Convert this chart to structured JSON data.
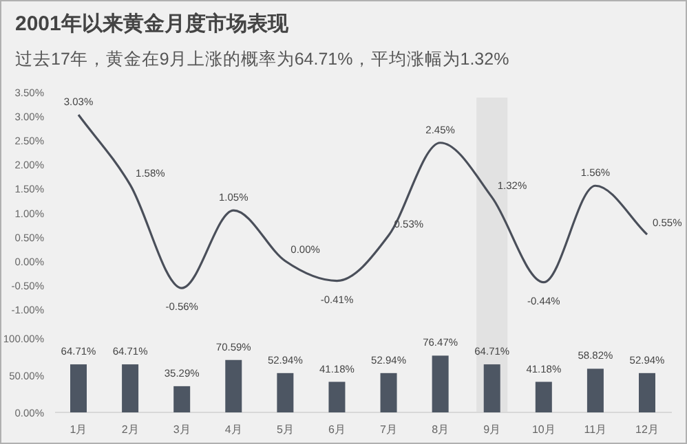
{
  "chart_data": [
    {
      "type": "line",
      "title": "2001年以来黄金月度市场表现",
      "subtitle": "过去17年，黄金在9月上涨的概率为64.71%，平均涨幅为1.32%",
      "categories": [
        null,
        null,
        null,
        null,
        null,
        null,
        null,
        null,
        null,
        null,
        null,
        null
      ],
      "series": [
        {
          "color": "#4a4f5a",
          "values": [
            3.03,
            1.58,
            -0.56,
            1.05,
            0.0,
            -0.41,
            0.53,
            2.45,
            1.32,
            -0.44,
            1.56,
            0.55
          ]
        }
      ],
      "value_labels": [
        "3.03%",
        "1.58%",
        "-0.56%",
        "1.05%",
        "0.00%",
        "-0.41%",
        "0.53%",
        "2.45%",
        "1.32%",
        "-0.44%",
        "1.56%",
        "0.55%"
      ],
      "ylim": [
        -1,
        3.5
      ],
      "yticks": [
        {
          "value": 3.5,
          "label": "3.50%"
        },
        {
          "value": 3,
          "label": "3.00%"
        },
        {
          "value": 2.5,
          "label": "2.50%"
        },
        {
          "value": 2,
          "label": "2.00%"
        },
        {
          "value": 1.5,
          "label": "1.50%"
        },
        {
          "value": 1,
          "label": "1.00%"
        },
        {
          "value": 0.5,
          "label": "0.50%"
        },
        {
          "value": 0,
          "label": "0.00%"
        },
        {
          "value": -0.5,
          "label": "-0.50%"
        },
        {
          "value": -1,
          "label": "-1.00%"
        }
      ],
      "tick_labels": "y",
      "marker": "none",
      "line_style": "solid"
    },
    {
      "type": "bar",
      "categories": [
        "1月",
        "2月",
        "3月",
        "4月",
        "5月",
        "6月",
        "7月",
        "8月",
        "9月",
        "10月",
        "11月",
        "12月"
      ],
      "series": [
        {
          "color": "#4d5663",
          "values": [
            64.71,
            64.71,
            35.29,
            70.59,
            52.94,
            41.18,
            52.94,
            76.47,
            64.71,
            41.18,
            58.82,
            52.94
          ]
        }
      ],
      "value_labels": [
        "64.71%",
        "64.71%",
        "35.29%",
        "70.59%",
        "52.94%",
        "41.18%",
        "52.94%",
        "76.47%",
        "64.71%",
        "41.18%",
        "58.82%",
        "52.94%"
      ],
      "ylim": [
        0,
        100
      ],
      "yticks": [
        {
          "value": 0,
          "label": "0.00%"
        },
        {
          "value": 50,
          "label": "50.00%"
        },
        {
          "value": 100,
          "label": "100.00%"
        }
      ],
      "bands": [
        {
          "axis": "x",
          "from": "9月",
          "to": "9月",
          "color": "#e2e2e2"
        }
      ]
    }
  ]
}
